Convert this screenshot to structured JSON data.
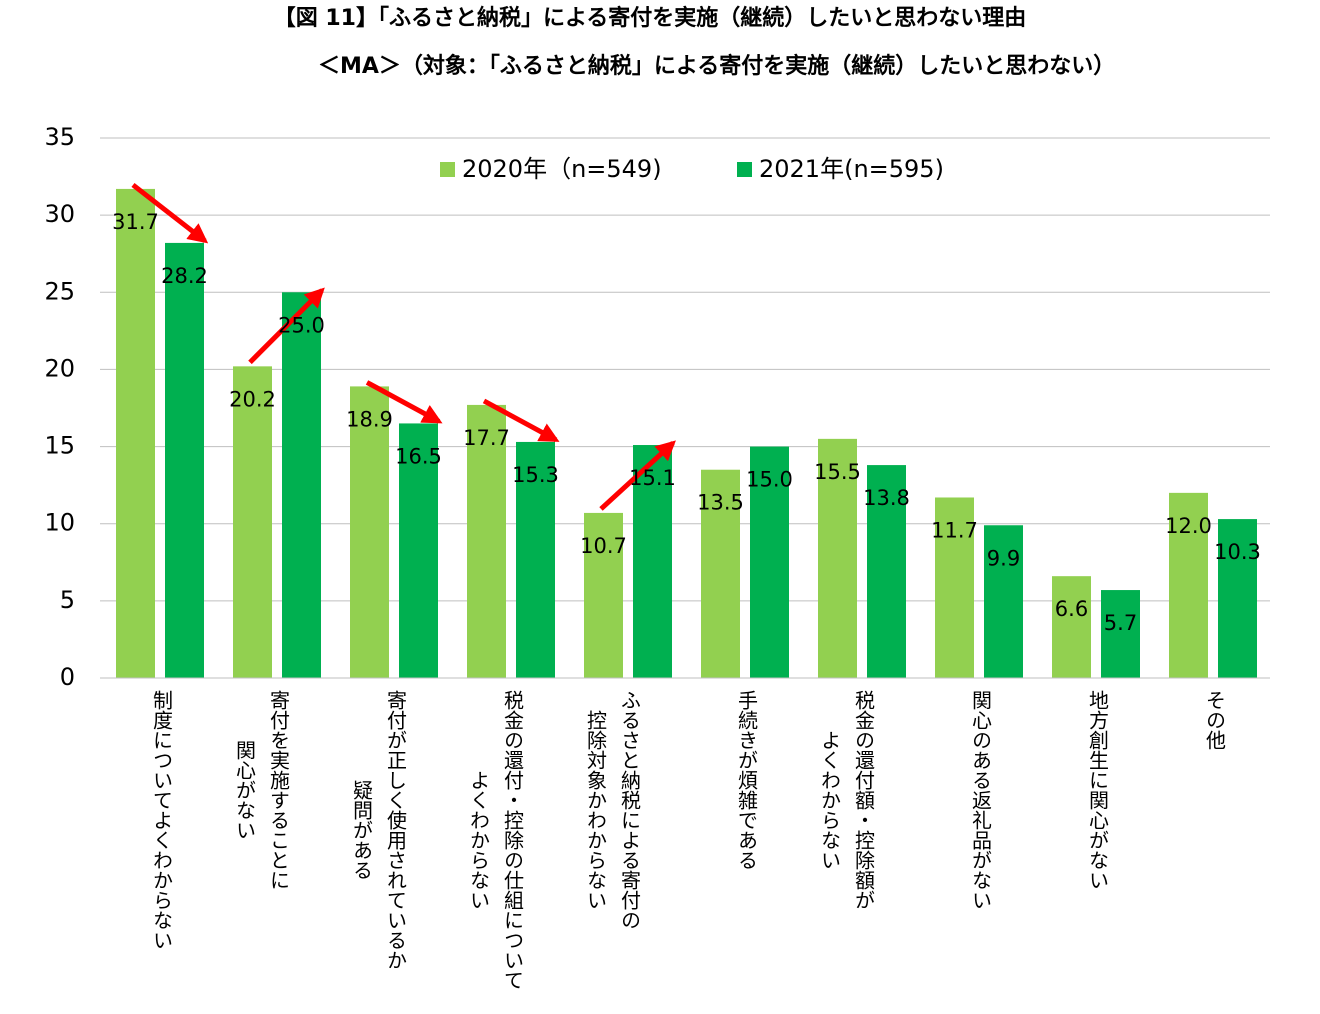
{
  "chart_data": {
    "type": "bar",
    "title": "【図 11】「ふるさと納税」による寄付を実施（継続）したいと思わない理由",
    "subtitle": "＜MA＞（対象：「ふるさと納税」による寄付を実施（継続）したいと思わない）",
    "categories": [
      [
        "制度についてよくわからない"
      ],
      [
        "寄付を実施することに",
        "関心がない"
      ],
      [
        "寄付が正しく使用されているか",
        "疑問がある"
      ],
      [
        "税金の還付・控除の仕組について",
        "よくわからない"
      ],
      [
        "ふるさと納税による寄付の",
        "控除対象かわからない"
      ],
      [
        "手続きが煩雑である"
      ],
      [
        "税金の還付額・控除額が",
        "よくわからない"
      ],
      [
        "関心のある返礼品がない"
      ],
      [
        "地方創生に関心がない"
      ],
      [
        "その他"
      ]
    ],
    "series": [
      {
        "name": "2020年（n=549)",
        "color": "#92d050",
        "values": [
          31.7,
          20.2,
          18.9,
          17.7,
          10.7,
          13.5,
          15.5,
          11.7,
          6.6,
          12.0
        ],
        "value_labels": [
          "31.7",
          "20.2",
          "18.9",
          "17.7",
          "10.7",
          "13.5",
          "15.5",
          "11.7",
          "6.6",
          "12.0"
        ]
      },
      {
        "name": "2021年(n=595)",
        "color": "#00b050",
        "values": [
          28.2,
          25.0,
          16.5,
          15.3,
          15.1,
          15.0,
          13.8,
          9.9,
          5.7,
          10.3
        ],
        "value_labels": [
          "28.2",
          "25.0",
          "16.5",
          "15.3",
          "15.1",
          "15.0",
          "13.8",
          "9.9",
          "5.7",
          "10.3"
        ]
      }
    ],
    "ylim": [
      0,
      35
    ],
    "yticks": [
      0,
      5,
      10,
      15,
      20,
      25,
      30,
      35
    ],
    "grid": true,
    "legend": "top"
  }
}
